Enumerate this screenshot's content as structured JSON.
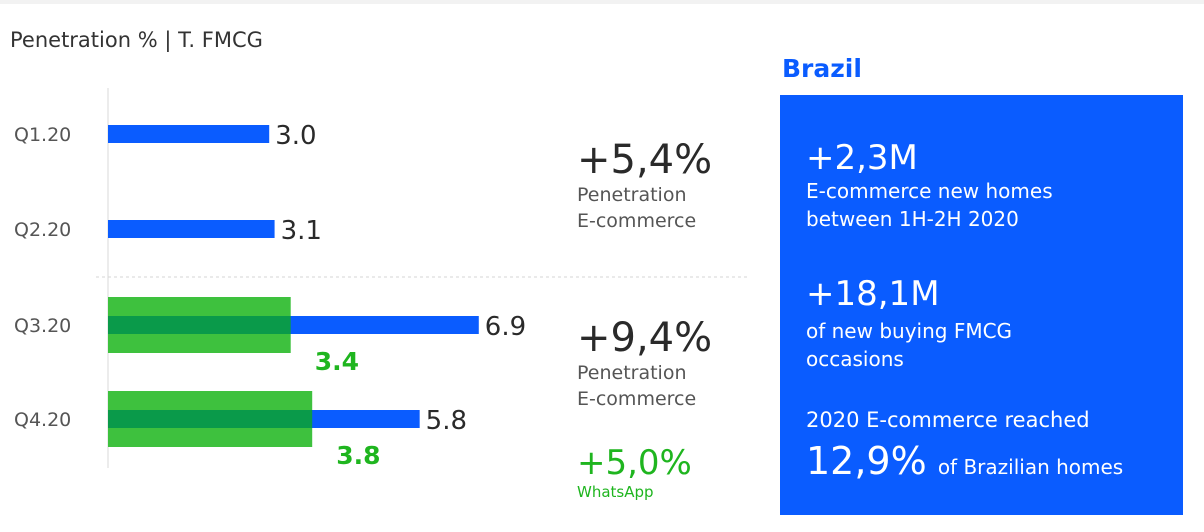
{
  "chart_data": {
    "type": "bar",
    "orientation": "horizontal",
    "title": "Penetration % | T. FMCG",
    "categories": [
      "Q1.20",
      "Q2.20",
      "Q3.20",
      "Q4.20"
    ],
    "series": [
      {
        "values": [
          3.0,
          3.1,
          6.9,
          5.8
        ],
        "labels": [
          "3.0",
          "3.1",
          "6.9",
          "5.8"
        ],
        "color": "#0a5cff"
      },
      {
        "values": [
          null,
          null,
          3.4,
          3.8
        ],
        "labels": [
          "",
          "",
          "3.4",
          "3.8"
        ],
        "color": "#3ec13e"
      }
    ],
    "xlim": [
      0,
      8.2
    ],
    "grid": false
  },
  "kpis": [
    {
      "value": "+5,4%",
      "label1": "Penetration",
      "label2": "E-commerce"
    },
    {
      "value": "+9,4%",
      "label1": "Penetration",
      "label2": "E-commerce"
    },
    {
      "value": "+5,0%",
      "label1": "WhatsApp",
      "color": "#1fb51f"
    }
  ],
  "country": "Brazil",
  "panel": {
    "stat1": "+2,3M",
    "desc1_line1": "E-commerce new homes",
    "desc1_line2": "between 1H-2H 2020",
    "stat2": "+18,1M",
    "desc2_line1": "of new buying FMCG",
    "desc2_line2": "occasions",
    "reach_label": "2020 E-commerce reached",
    "reach_value": "12,9%",
    "reach_tail": "of Brazilian homes"
  },
  "colors": {
    "brand_blue": "#0a5cff",
    "green": "#3ec13e",
    "green_overlap": "#0a9a4a",
    "green_text": "#1fb51f"
  }
}
